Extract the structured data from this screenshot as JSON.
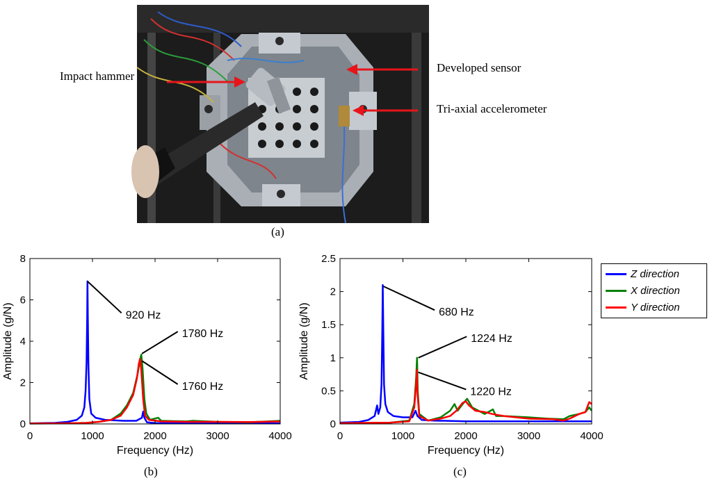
{
  "panel_a": {
    "caption": "(a)",
    "callouts": {
      "impact_hammer": "Impact hammer",
      "developed_sensor": "Developed sensor",
      "accelerometer": "Tri-axial accelerometer"
    },
    "colors": {
      "arrow": "#e8141a",
      "plate": "#b9bec4",
      "background": "#222222"
    }
  },
  "chart_data": [
    {
      "type": "line",
      "caption": "(b)",
      "xlabel": "Frequency  (Hz)",
      "ylabel": "Amplitude  (g/N)",
      "xlim": [
        0,
        4000
      ],
      "ylim": [
        0,
        8
      ],
      "xticks": [
        "0",
        "1000",
        "2000",
        "3000",
        "4000"
      ],
      "yticks": [
        "0",
        "2",
        "4",
        "6",
        "8"
      ],
      "series": [
        {
          "name": "Z direction",
          "color": "#0000ff",
          "points": [
            [
              0,
              0.03
            ],
            [
              400,
              0.05
            ],
            [
              600,
              0.1
            ],
            [
              750,
              0.2
            ],
            [
              830,
              0.4
            ],
            [
              870,
              0.8
            ],
            [
              890,
              1.6
            ],
            [
              905,
              3.0
            ],
            [
              915,
              5.2
            ],
            [
              920,
              6.9
            ],
            [
              925,
              5.2
            ],
            [
              935,
              2.8
            ],
            [
              950,
              1.2
            ],
            [
              980,
              0.5
            ],
            [
              1050,
              0.3
            ],
            [
              1200,
              0.2
            ],
            [
              1500,
              0.15
            ],
            [
              1700,
              0.15
            ],
            [
              1790,
              0.3
            ],
            [
              1810,
              0.6
            ],
            [
              1830,
              0.3
            ],
            [
              1870,
              0.08
            ],
            [
              2000,
              0.04
            ],
            [
              2500,
              0.03
            ],
            [
              3000,
              0.03
            ],
            [
              4000,
              0.03
            ]
          ]
        },
        {
          "name": "X direction",
          "color": "#008000",
          "points": [
            [
              0,
              0.02
            ],
            [
              600,
              0.03
            ],
            [
              900,
              0.05
            ],
            [
              1100,
              0.1
            ],
            [
              1300,
              0.2
            ],
            [
              1450,
              0.5
            ],
            [
              1550,
              0.9
            ],
            [
              1650,
              1.5
            ],
            [
              1720,
              2.4
            ],
            [
              1760,
              3.1
            ],
            [
              1780,
              3.35
            ],
            [
              1800,
              2.7
            ],
            [
              1830,
              1.2
            ],
            [
              1860,
              0.5
            ],
            [
              1920,
              0.2
            ],
            [
              2050,
              0.3
            ],
            [
              2100,
              0.15
            ],
            [
              2500,
              0.12
            ],
            [
              2600,
              0.15
            ],
            [
              3000,
              0.1
            ],
            [
              3500,
              0.08
            ],
            [
              3800,
              0.12
            ],
            [
              4000,
              0.15
            ]
          ]
        },
        {
          "name": "Y direction",
          "color": "#ff0000",
          "points": [
            [
              0,
              0.02
            ],
            [
              600,
              0.03
            ],
            [
              900,
              0.05
            ],
            [
              1100,
              0.1
            ],
            [
              1300,
              0.2
            ],
            [
              1450,
              0.4
            ],
            [
              1550,
              0.8
            ],
            [
              1650,
              1.4
            ],
            [
              1710,
              2.2
            ],
            [
              1740,
              2.9
            ],
            [
              1760,
              3.15
            ],
            [
              1780,
              2.6
            ],
            [
              1810,
              1.2
            ],
            [
              1840,
              0.4
            ],
            [
              1900,
              0.2
            ],
            [
              2100,
              0.12
            ],
            [
              2500,
              0.1
            ],
            [
              3000,
              0.1
            ],
            [
              3500,
              0.09
            ],
            [
              4000,
              0.12
            ]
          ]
        }
      ],
      "annotations": [
        {
          "text": "920 Hz",
          "x": 920,
          "y": 6.9,
          "tx": 1530,
          "ty": 5.3
        },
        {
          "text": "1780 Hz",
          "x": 1790,
          "y": 3.4,
          "tx": 2430,
          "ty": 4.4
        },
        {
          "text": "1760 Hz",
          "x": 1790,
          "y": 3.05,
          "tx": 2430,
          "ty": 1.85
        }
      ]
    },
    {
      "type": "line",
      "caption": "(c)",
      "xlabel": "Frequency  (Hz)",
      "ylabel": "Amplitude  (g/N)",
      "xlim": [
        0,
        4000
      ],
      "ylim": [
        0,
        2.5
      ],
      "xticks": [
        "0",
        "1000",
        "2000",
        "3000",
        "4000"
      ],
      "yticks": [
        "0",
        "0.5",
        "1",
        "1.5",
        "2",
        "2.5"
      ],
      "series": [
        {
          "name": "Z direction",
          "color": "#0000ff",
          "points": [
            [
              0,
              0.02
            ],
            [
              300,
              0.03
            ],
            [
              450,
              0.06
            ],
            [
              550,
              0.12
            ],
            [
              590,
              0.28
            ],
            [
              610,
              0.15
            ],
            [
              640,
              0.25
            ],
            [
              660,
              0.6
            ],
            [
              672,
              1.4
            ],
            [
              680,
              2.1
            ],
            [
              688,
              1.4
            ],
            [
              700,
              0.6
            ],
            [
              720,
              0.3
            ],
            [
              760,
              0.18
            ],
            [
              850,
              0.12
            ],
            [
              1000,
              0.1
            ],
            [
              1150,
              0.1
            ],
            [
              1200,
              0.2
            ],
            [
              1230,
              0.12
            ],
            [
              1300,
              0.06
            ],
            [
              1500,
              0.05
            ],
            [
              2000,
              0.04
            ],
            [
              3000,
              0.04
            ],
            [
              4000,
              0.04
            ]
          ]
        },
        {
          "name": "X direction",
          "color": "#008000",
          "points": [
            [
              0,
              0.01
            ],
            [
              800,
              0.02
            ],
            [
              1100,
              0.05
            ],
            [
              1180,
              0.3
            ],
            [
              1210,
              0.7
            ],
            [
              1224,
              1.0
            ],
            [
              1235,
              0.5
            ],
            [
              1260,
              0.15
            ],
            [
              1400,
              0.05
            ],
            [
              1600,
              0.1
            ],
            [
              1750,
              0.2
            ],
            [
              1820,
              0.3
            ],
            [
              1870,
              0.2
            ],
            [
              1950,
              0.3
            ],
            [
              2020,
              0.38
            ],
            [
              2100,
              0.25
            ],
            [
              2200,
              0.2
            ],
            [
              2300,
              0.15
            ],
            [
              2430,
              0.22
            ],
            [
              2480,
              0.12
            ],
            [
              2600,
              0.12
            ],
            [
              3000,
              0.1
            ],
            [
              3300,
              0.08
            ],
            [
              3550,
              0.07
            ],
            [
              3650,
              0.12
            ],
            [
              3800,
              0.15
            ],
            [
              3900,
              0.18
            ],
            [
              3960,
              0.25
            ],
            [
              4000,
              0.2
            ]
          ]
        },
        {
          "name": "Y direction",
          "color": "#ff0000",
          "points": [
            [
              0,
              0.01
            ],
            [
              800,
              0.02
            ],
            [
              1100,
              0.04
            ],
            [
              1180,
              0.25
            ],
            [
              1210,
              0.6
            ],
            [
              1220,
              0.82
            ],
            [
              1232,
              0.45
            ],
            [
              1260,
              0.12
            ],
            [
              1400,
              0.05
            ],
            [
              1600,
              0.08
            ],
            [
              1750,
              0.12
            ],
            [
              1850,
              0.2
            ],
            [
              1950,
              0.32
            ],
            [
              2000,
              0.34
            ],
            [
              2050,
              0.28
            ],
            [
              2150,
              0.2
            ],
            [
              2300,
              0.18
            ],
            [
              2420,
              0.15
            ],
            [
              2600,
              0.12
            ],
            [
              3000,
              0.08
            ],
            [
              3400,
              0.07
            ],
            [
              3550,
              0.05
            ],
            [
              3650,
              0.08
            ],
            [
              3800,
              0.15
            ],
            [
              3900,
              0.18
            ],
            [
              3960,
              0.33
            ],
            [
              4000,
              0.3
            ]
          ]
        }
      ],
      "annotations": [
        {
          "text": "680 Hz",
          "x": 690,
          "y": 2.08,
          "tx": 1570,
          "ty": 1.7
        },
        {
          "text": "1224 Hz",
          "x": 1245,
          "y": 1.0,
          "tx": 2080,
          "ty": 1.3
        },
        {
          "text": "1220 Hz",
          "x": 1245,
          "y": 0.78,
          "tx": 2070,
          "ty": 0.5
        }
      ]
    }
  ],
  "legend": {
    "items": [
      {
        "label": "Z direction",
        "color": "#0000ff"
      },
      {
        "label": "X direction",
        "color": "#008000"
      },
      {
        "label": "Y direction",
        "color": "#ff0000"
      }
    ]
  }
}
